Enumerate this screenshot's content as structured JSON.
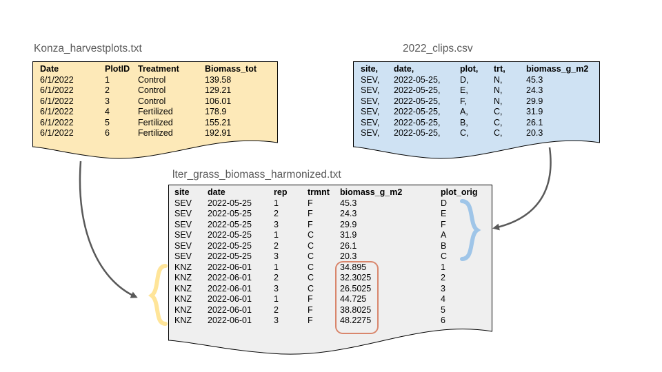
{
  "konza": {
    "title": "Konza_harvestplots.txt",
    "headers": [
      "Date",
      "PlotID",
      "Treatment",
      "Biomass_tot"
    ],
    "rows": [
      [
        "6/1/2022",
        "1",
        "Control",
        "139.58"
      ],
      [
        "6/1/2022",
        "2",
        "Control",
        "129.21"
      ],
      [
        "6/1/2022",
        "3",
        "Control",
        "106.01"
      ],
      [
        "6/1/2022",
        "4",
        "Fertilized",
        "178.9"
      ],
      [
        "6/1/2022",
        "5",
        "Fertilized",
        "155.21"
      ],
      [
        "6/1/2022",
        "6",
        "Fertilized",
        "192.91"
      ]
    ],
    "fill": "#fde9b8"
  },
  "clips": {
    "title": "2022_clips.csv",
    "headers": [
      "site,",
      "date,",
      "plot,",
      "trt,",
      "biomass_g_m2"
    ],
    "rows": [
      [
        "SEV,",
        "2022-05-25,",
        "D,",
        "N,",
        "45.3"
      ],
      [
        "SEV,",
        "2022-05-25,",
        "E,",
        "N,",
        "24.3"
      ],
      [
        "SEV,",
        "2022-05-25,",
        "F,",
        "N,",
        "29.9"
      ],
      [
        "SEV,",
        "2022-05-25,",
        "A,",
        "C,",
        "31.9"
      ],
      [
        "SEV,",
        "2022-05-25,",
        "B,",
        "C,",
        "26.1"
      ],
      [
        "SEV,",
        "2022-05-25,",
        "C,",
        "C,",
        "20.3"
      ]
    ],
    "fill": "#cfe2f3"
  },
  "harmonized": {
    "title": "lter_grass_biomass_harmonized.txt",
    "headers": [
      "site",
      "date",
      "rep",
      "trmnt",
      "biomass_g_m2",
      "plot_orig"
    ],
    "rows": [
      [
        "SEV",
        "2022-05-25",
        "1",
        "F",
        "45.3",
        "D"
      ],
      [
        "SEV",
        "2022-05-25",
        "2",
        "F",
        "24.3",
        "E"
      ],
      [
        "SEV",
        "2022-05-25",
        "3",
        "F",
        "29.9",
        "F"
      ],
      [
        "SEV",
        "2022-05-25",
        "1",
        "C",
        "31.9",
        "A"
      ],
      [
        "SEV",
        "2022-05-25",
        "2",
        "C",
        "26.1",
        "B"
      ],
      [
        "SEV",
        "2022-05-25",
        "3",
        "C",
        "20.3",
        "C"
      ],
      [
        "KNZ",
        "2022-06-01",
        "1",
        "C",
        "34.895",
        "1"
      ],
      [
        "KNZ",
        "2022-06-01",
        "2",
        "C",
        "32.3025",
        "2"
      ],
      [
        "KNZ",
        "2022-06-01",
        "3",
        "C",
        "26.5025",
        "3"
      ],
      [
        "KNZ",
        "2022-06-01",
        "1",
        "F",
        "44.725",
        "4"
      ],
      [
        "KNZ",
        "2022-06-01",
        "2",
        "F",
        "38.8025",
        "5"
      ],
      [
        "KNZ",
        "2022-06-01",
        "3",
        "F",
        "48.2275",
        "6"
      ]
    ],
    "fill": "#efefef"
  },
  "colors": {
    "arrow": "#595959",
    "yellow_brace": "#ffe599",
    "blue_brace": "#9fc5e8",
    "highlight_box": "#d9866c",
    "doc_border": "#000000"
  },
  "icons": {
    "left_brace": "curly-brace-left-icon",
    "right_brace": "curly-brace-right-icon",
    "arrow": "curved-arrow-icon"
  }
}
